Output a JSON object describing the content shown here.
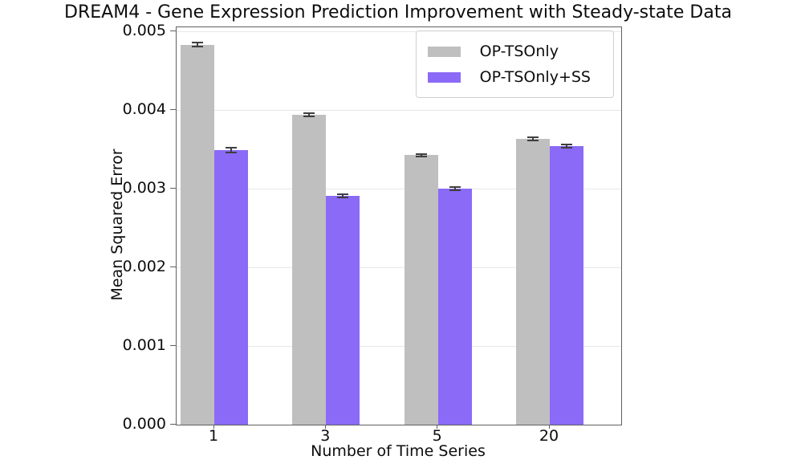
{
  "chart_data": {
    "type": "bar",
    "title": "DREAM4 - Gene Expression Prediction Improvement with Steady-state Data",
    "xlabel": "Number of Time Series",
    "ylabel": "Mean Squared Error",
    "categories": [
      "1",
      "3",
      "5",
      "20"
    ],
    "series": [
      {
        "name": "OP-TSOnly",
        "color": "#bfbfbf",
        "values": [
          0.00484,
          0.00395,
          0.00343,
          0.00364
        ],
        "errors": [
          3e-05,
          2e-05,
          2e-05,
          2e-05
        ]
      },
      {
        "name": "OP-TSOnly+SS",
        "color": "#8a6af7",
        "values": [
          0.0035,
          0.00291,
          0.00301,
          0.00355
        ],
        "errors": [
          3e-05,
          2e-05,
          2e-05,
          2e-05
        ]
      }
    ],
    "ylim": [
      0,
      0.00506
    ],
    "yticks": [
      0,
      0.001,
      0.002,
      0.003,
      0.004,
      0.005
    ],
    "ytick_labels": [
      "0.000",
      "0.001",
      "0.002",
      "0.003",
      "0.004",
      "0.005"
    ],
    "grid": true,
    "legend_position": "upper right",
    "colors": {
      "grid": "#e8e8e8",
      "error_bar": "#3f3f3f",
      "spine": "#606060",
      "text": "#0d0d0d"
    }
  }
}
